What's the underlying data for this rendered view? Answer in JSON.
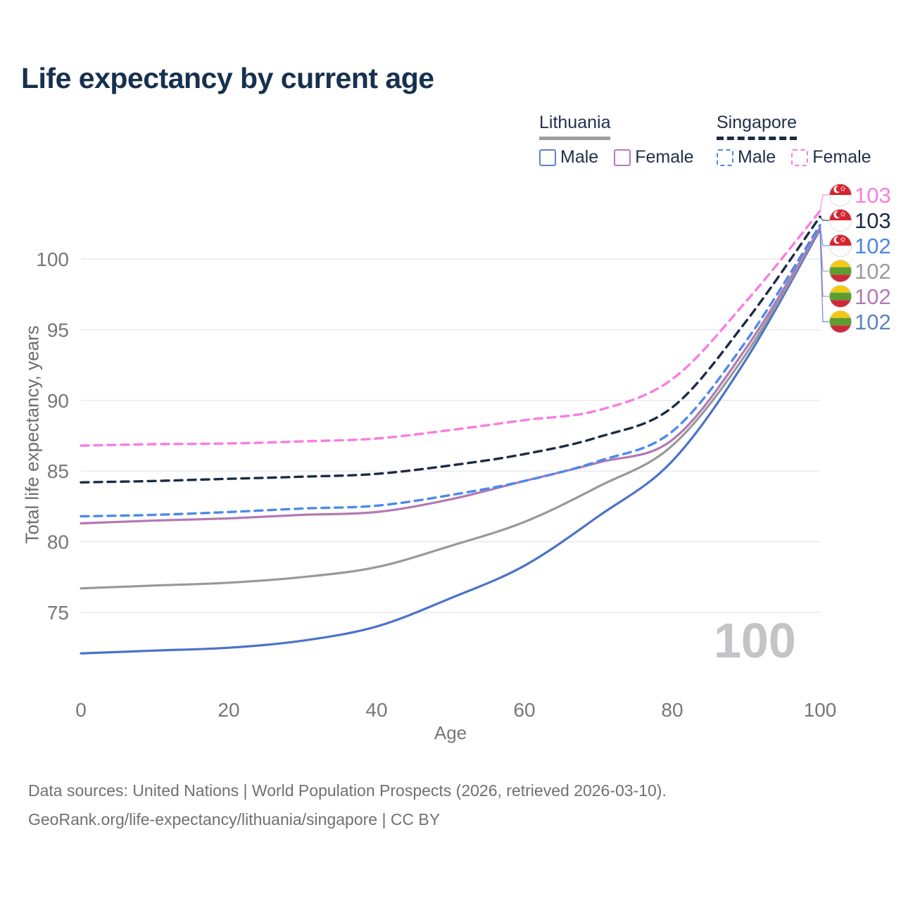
{
  "title": "Life expectancy by current age",
  "legend": {
    "groups": [
      {
        "label": "Lithuania",
        "line_style": "solid",
        "underline_color": "#9e9ea2",
        "items": [
          {
            "label": "Male",
            "color": "#5b84c8",
            "dash": false
          },
          {
            "label": "Female",
            "color": "#b87ab8",
            "dash": false
          }
        ]
      },
      {
        "label": "Singapore",
        "line_style": "dashed",
        "underline_color": "#1c2b45",
        "items": [
          {
            "label": "Male",
            "color": "#4d89ee",
            "dash": true
          },
          {
            "label": "Female",
            "color": "#fb7ce0",
            "dash": true
          }
        ]
      }
    ]
  },
  "y_axis": {
    "label": "Total life expectancy, years",
    "ticks": [
      75,
      80,
      85,
      90,
      95,
      100
    ]
  },
  "x_axis": {
    "label": "Age",
    "ticks": [
      0,
      20,
      40,
      60,
      80,
      100
    ]
  },
  "chart_data": {
    "type": "line",
    "x": [
      0,
      10,
      20,
      30,
      40,
      50,
      60,
      70,
      80,
      90,
      100
    ],
    "xlabel": "Age",
    "ylabel": "Total life expectancy, years",
    "xlim": [
      0,
      100
    ],
    "ylim": [
      72,
      104
    ],
    "grid": "horizontal-only",
    "series": [
      {
        "name": "Singapore Female",
        "country": "Singapore",
        "sex": "female",
        "color": "#fb7ce0",
        "dash": "dashed",
        "values": [
          86.8,
          86.9,
          86.95,
          87.1,
          87.3,
          87.9,
          88.6,
          89.3,
          91.5,
          97.0,
          103.4
        ]
      },
      {
        "name": "Singapore (both sexes)",
        "country": "Singapore",
        "sex": "all",
        "color": "#1c2b45",
        "dash": "dashed",
        "values": [
          84.2,
          84.3,
          84.45,
          84.6,
          84.8,
          85.4,
          86.2,
          87.4,
          89.5,
          95.6,
          103.0
        ]
      },
      {
        "name": "Singapore Male",
        "country": "Singapore",
        "sex": "male",
        "color": "#4d89ee",
        "dash": "dashed",
        "values": [
          81.8,
          81.9,
          82.1,
          82.35,
          82.55,
          83.3,
          84.3,
          85.7,
          87.8,
          94.2,
          102.4
        ]
      },
      {
        "name": "Lithuania Female",
        "country": "Lithuania",
        "sex": "female",
        "color": "#b279b2",
        "dash": "solid",
        "values": [
          81.3,
          81.5,
          81.65,
          81.9,
          82.1,
          83.0,
          84.3,
          85.6,
          87.2,
          93.7,
          102.2
        ]
      },
      {
        "name": "Lithuania (both sexes)",
        "country": "Lithuania",
        "sex": "all",
        "color": "#999999",
        "dash": "solid",
        "values": [
          76.7,
          76.9,
          77.1,
          77.5,
          78.2,
          79.7,
          81.4,
          83.9,
          86.8,
          93.3,
          102.2
        ]
      },
      {
        "name": "Lithuania Male",
        "country": "Lithuania",
        "sex": "male",
        "color": "#4a73c9",
        "dash": "solid",
        "values": [
          72.1,
          72.3,
          72.5,
          73.0,
          74.0,
          76.0,
          78.3,
          81.8,
          85.7,
          92.9,
          102.1
        ]
      }
    ],
    "end_labels": [
      {
        "value": "103",
        "flag": "sg",
        "color": "#fb7ce0",
        "series": "Singapore Female"
      },
      {
        "value": "103",
        "flag": "sg",
        "color": "#1c2b45",
        "series": "Singapore (both sexes)"
      },
      {
        "value": "102",
        "flag": "sg",
        "color": "#4c86e8",
        "series": "Singapore Male"
      },
      {
        "value": "102",
        "flag": "lt",
        "color": "#9a9aa0",
        "series": "Lithuania (both sexes)"
      },
      {
        "value": "102",
        "flag": "lt",
        "color": "#b279b2",
        "series": "Lithuania Female"
      },
      {
        "value": "102",
        "flag": "lt",
        "color": "#5b82c8",
        "series": "Lithuania Male"
      }
    ]
  },
  "watermark": "100",
  "footer": {
    "line1": "Data sources: United Nations | World Population Prospects (2026, retrieved 2026-03-10).",
    "line2": "GeoRank.org/life-expectancy/lithuania/singapore | CC BY"
  },
  "colors": {
    "title": "#16304f",
    "tick_text": "#77777b",
    "gridline": "#e8e8ed",
    "watermark": "#c3c3c8",
    "footer_text": "#707074",
    "flag_sg_red": "#d5242f",
    "flag_lt_yellow": "#f3c814",
    "flag_lt_green": "#5a9e32",
    "flag_lt_red": "#ce2939"
  }
}
